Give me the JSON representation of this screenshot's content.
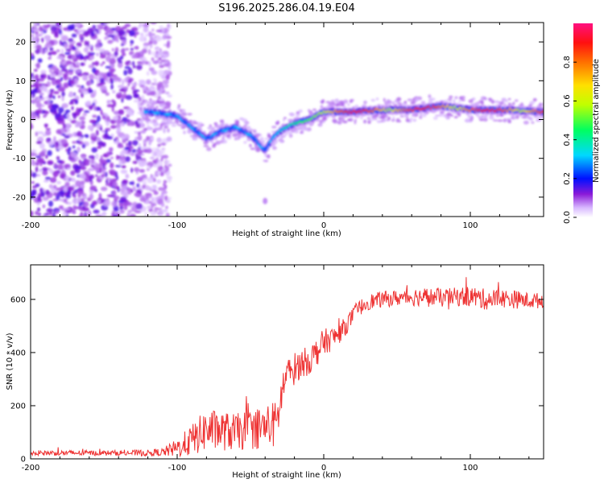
{
  "title": "S196.2025.286.04.19.E04",
  "chart_data": [
    {
      "type": "heatmap",
      "xlabel": "Height of straight line (km)",
      "ylabel": "Frequency (Hz)",
      "xlim": [
        -200,
        150
      ],
      "ylim": [
        -25,
        25
      ],
      "xticks": [
        -200,
        -100,
        0,
        100
      ],
      "xtick_labels": [
        "-200",
        "-100",
        "0",
        "100"
      ],
      "yticks": [
        -20,
        -10,
        0,
        10,
        20
      ],
      "ytick_labels": [
        "-20",
        "-10",
        "0",
        "10",
        "20"
      ],
      "ridge": {
        "description_x": [
          -120,
          -100,
          -90,
          -80,
          -70,
          -60,
          -50,
          -40,
          -35,
          -30,
          -20,
          -10,
          0,
          20,
          40,
          60,
          80,
          90,
          100,
          120,
          150
        ],
        "frequency_hz": [
          2,
          1,
          -2,
          -5,
          -3,
          -2,
          -4,
          -8,
          -5,
          -3,
          -1,
          0,
          2,
          2,
          2.5,
          2.5,
          3.5,
          3,
          2.5,
          2.5,
          2
        ]
      },
      "colorbar": {
        "label": "Normalized spectral amplitude",
        "range": [
          0,
          1
        ],
        "ticks": [
          0.0,
          0.2,
          0.4,
          0.6,
          0.8
        ],
        "tick_labels": [
          "0.0",
          "0.2",
          "0.4",
          "0.6",
          "0.8"
        ],
        "colors": [
          "#ffffff",
          "#b57cff",
          "#7a00d8",
          "#0000ff",
          "#00ffff",
          "#00ff00",
          "#ffff00",
          "#ff8000",
          "#ff0000",
          "#ff0080"
        ]
      }
    },
    {
      "type": "line",
      "xlabel": "Height of straight line (km)",
      "ylabel": "SNR (10 * v/v)",
      "xlim": [
        -200,
        150
      ],
      "ylim": [
        0,
        730
      ],
      "xticks": [
        -200,
        -100,
        0,
        100
      ],
      "xtick_labels": [
        "-200",
        "-100",
        "0",
        "100"
      ],
      "yticks": [
        0,
        200,
        400,
        600
      ],
      "ytick_labels": [
        "0",
        "200",
        "400",
        "600"
      ],
      "series": [
        {
          "name": "SNR",
          "color": "#ee3333",
          "x": [
            -200,
            -180,
            -160,
            -140,
            -120,
            -110,
            -100,
            -90,
            -80,
            -70,
            -60,
            -50,
            -40,
            -32,
            -30,
            -28,
            -25,
            -20,
            -15,
            -10,
            -5,
            0,
            5,
            10,
            15,
            20,
            25,
            30,
            40,
            50,
            60,
            70,
            80,
            90,
            100,
            110,
            120,
            130,
            140,
            150
          ],
          "y": [
            22,
            22,
            22,
            22,
            22,
            25,
            40,
            70,
            110,
            105,
            100,
            110,
            120,
            130,
            200,
            270,
            310,
            340,
            360,
            370,
            400,
            440,
            450,
            470,
            500,
            540,
            570,
            590,
            600,
            605,
            610,
            610,
            605,
            610,
            612,
            600,
            605,
            600,
            595,
            595
          ],
          "noise_amplitude": [
            10,
            10,
            10,
            10,
            12,
            15,
            35,
            60,
            80,
            75,
            70,
            75,
            85,
            90,
            80,
            70,
            70,
            60,
            55,
            55,
            55,
            50,
            45,
            40,
            35,
            30,
            30,
            30,
            30,
            30,
            35,
            35,
            35,
            35,
            40,
            40,
            35,
            35,
            30,
            30
          ]
        }
      ]
    }
  ]
}
